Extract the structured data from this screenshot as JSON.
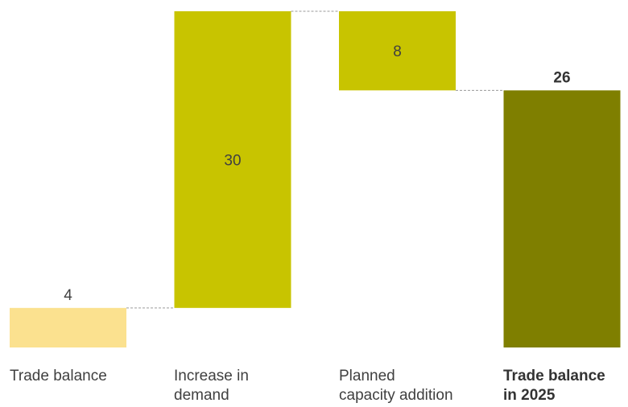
{
  "chart_data": {
    "type": "waterfall",
    "categories": [
      "Trade balance",
      "Increase in\ndemand",
      "Planned\ncapacity addition",
      "Trade balance\nin 2025"
    ],
    "steps": [
      {
        "label": "Trade balance",
        "kind": "total",
        "value": 4,
        "display": "4",
        "color": "#fbe18f"
      },
      {
        "label": "Increase in demand",
        "kind": "increase",
        "value": 30,
        "display": "30",
        "color": "#c8c400"
      },
      {
        "label": "Planned capacity addition",
        "kind": "decrease",
        "value": -8,
        "display": "8",
        "color": "#c8c400"
      },
      {
        "label": "Trade balance in 2025",
        "kind": "total",
        "value": 26,
        "display": "26",
        "color": "#7f7f00"
      }
    ],
    "ylim": [
      0,
      34
    ],
    "grid": false,
    "connectors": "dashed"
  }
}
